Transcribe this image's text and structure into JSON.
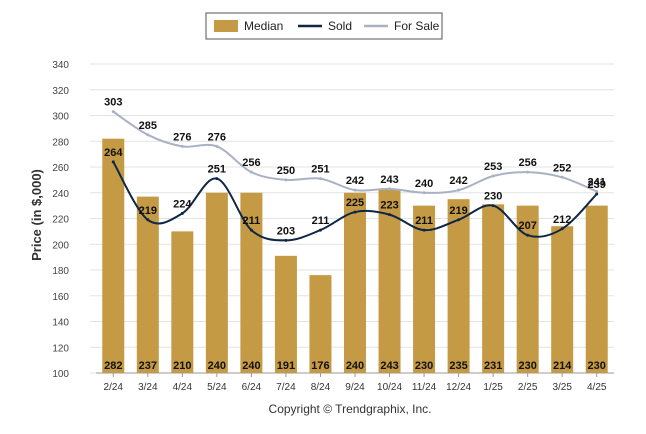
{
  "chart_data": {
    "type": "bar",
    "categories": [
      "2/24",
      "3/24",
      "4/24",
      "5/24",
      "6/24",
      "7/24",
      "8/24",
      "9/24",
      "10/24",
      "11/24",
      "12/24",
      "1/25",
      "2/25",
      "3/25",
      "4/25"
    ],
    "series": [
      {
        "name": "Median",
        "kind": "bar",
        "color": "#C49A45",
        "values": [
          282,
          237,
          210,
          240,
          240,
          191,
          176,
          240,
          243,
          230,
          235,
          231,
          230,
          214,
          230
        ]
      },
      {
        "name": "Sold",
        "kind": "line",
        "color": "#0E2746",
        "values": [
          264,
          219,
          224,
          251,
          211,
          203,
          211,
          225,
          223,
          211,
          219,
          230,
          207,
          212,
          239
        ]
      },
      {
        "name": "For Sale",
        "kind": "line",
        "color": "#A9B1C4",
        "values": [
          303,
          285,
          276,
          276,
          256,
          250,
          251,
          242,
          243,
          240,
          242,
          253,
          256,
          252,
          241
        ]
      }
    ],
    "ylabel": "Price (in $,000)",
    "xlabel": "",
    "ylim": [
      100,
      340
    ],
    "yticks": [
      100,
      120,
      140,
      160,
      180,
      200,
      220,
      240,
      260,
      280,
      300,
      320,
      340
    ],
    "grid": true,
    "legend_position": "top-center",
    "footer": "Copyright © Trendgraphix, Inc."
  }
}
